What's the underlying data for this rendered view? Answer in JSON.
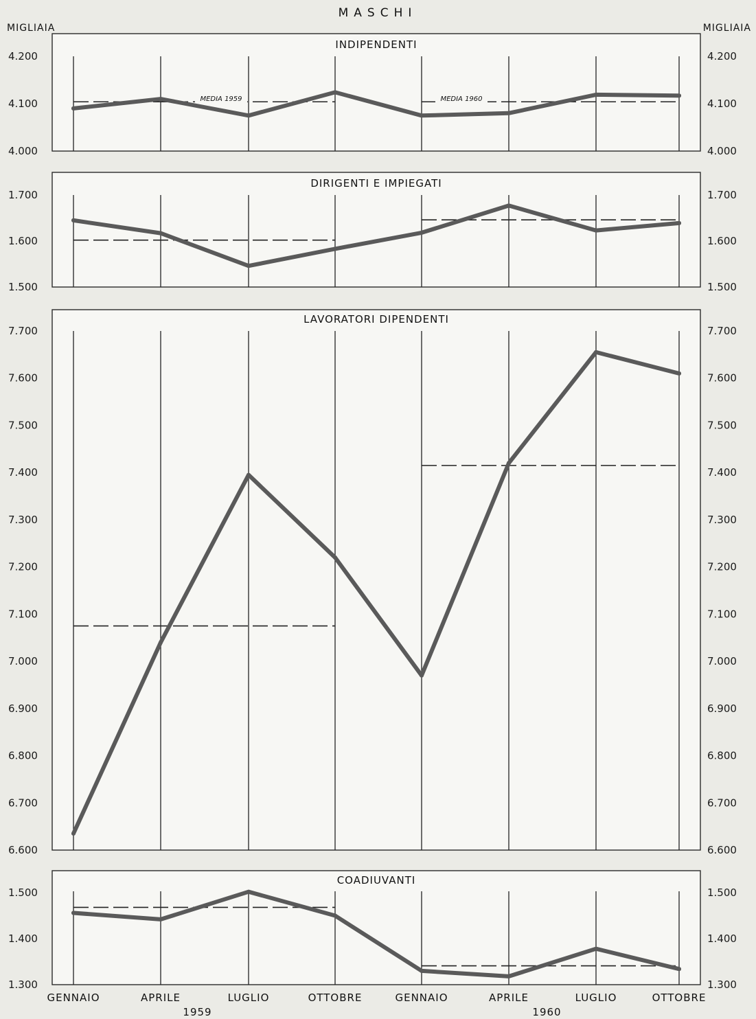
{
  "title": "MASCHI",
  "unit_left": "MIGLIAIA",
  "unit_right": "MIGLIAIA",
  "years": [
    "1959",
    "1960"
  ],
  "x_labels": [
    "GENNAIO",
    "APRILE",
    "LUGLIO",
    "OTTOBRE",
    "GENNAIO",
    "APRILE",
    "LUGLIO",
    "OTTOBRE"
  ],
  "chart_data": [
    {
      "type": "line",
      "title": "INDIPENDENTI",
      "x": [
        "GENNAIO 1959",
        "APRILE 1959",
        "LUGLIO 1959",
        "OTTOBRE 1959",
        "GENNAIO 1960",
        "APRILE 1960",
        "LUGLIO 1960",
        "OTTOBRE 1960"
      ],
      "values": [
        4090,
        4110,
        4075,
        4124,
        4075,
        4080,
        4119,
        4117
      ],
      "ylim": [
        4000,
        4200
      ],
      "yticks": [
        4000,
        4100,
        4200
      ],
      "ytick_labels": [
        "4.000",
        "4.100",
        "4.200"
      ],
      "means": [
        {
          "label": "MEDIA 1959",
          "value": 4104,
          "from": 0,
          "to": 3
        },
        {
          "label": "MEDIA 1960",
          "value": 4104,
          "from": 4,
          "to": 7
        }
      ]
    },
    {
      "type": "line",
      "title": "DIRIGENTI E IMPIEGATI",
      "x": [
        "GENNAIO 1959",
        "APRILE 1959",
        "LUGLIO 1959",
        "OTTOBRE 1959",
        "GENNAIO 1960",
        "APRILE 1960",
        "LUGLIO 1960",
        "OTTOBRE 1960"
      ],
      "values": [
        1645,
        1617,
        1546,
        1583,
        1618,
        1677,
        1623,
        1639
      ],
      "ylim": [
        1500,
        1700
      ],
      "yticks": [
        1500,
        1600,
        1700
      ],
      "ytick_labels": [
        "1.500",
        "1.600",
        "1.700"
      ],
      "means": [
        {
          "label": "",
          "value": 1602,
          "from": 0,
          "to": 3
        },
        {
          "label": "",
          "value": 1646,
          "from": 4,
          "to": 7
        }
      ]
    },
    {
      "type": "line",
      "title": "LAVORATORI DIPENDENTI",
      "x": [
        "GENNAIO 1959",
        "APRILE 1959",
        "LUGLIO 1959",
        "OTTOBRE 1959",
        "GENNAIO 1960",
        "APRILE 1960",
        "LUGLIO 1960",
        "OTTOBRE 1960"
      ],
      "values": [
        6635,
        7040,
        7395,
        7220,
        6970,
        7420,
        7655,
        7610
      ],
      "ylim": [
        6600,
        7700
      ],
      "yticks": [
        6600,
        6700,
        6800,
        6900,
        7000,
        7100,
        7200,
        7300,
        7400,
        7500,
        7600,
        7700
      ],
      "ytick_labels": [
        "6.600",
        "6.700",
        "6.800",
        "6.900",
        "7.000",
        "7.100",
        "7.200",
        "7.300",
        "7.400",
        "7.500",
        "7.600",
        "7.700"
      ],
      "means": [
        {
          "label": "",
          "value": 7075,
          "from": 0,
          "to": 3
        },
        {
          "label": "",
          "value": 7415,
          "from": 4,
          "to": 7
        }
      ]
    },
    {
      "type": "line",
      "title": "COADIUVANTI",
      "x": [
        "GENNAIO 1959",
        "APRILE 1959",
        "LUGLIO 1959",
        "OTTOBRE 1959",
        "GENNAIO 1960",
        "APRILE 1960",
        "LUGLIO 1960",
        "OTTOBRE 1960"
      ],
      "values": [
        1456,
        1442,
        1502,
        1450,
        1330,
        1318,
        1378,
        1334
      ],
      "ylim": [
        1300,
        1500
      ],
      "yticks": [
        1300,
        1400,
        1500
      ],
      "ytick_labels": [
        "1.300",
        "1.400",
        "1.500"
      ],
      "means": [
        {
          "label": "",
          "value": 1468,
          "from": 0,
          "to": 3
        },
        {
          "label": "",
          "value": 1341,
          "from": 4,
          "to": 7
        }
      ]
    }
  ]
}
